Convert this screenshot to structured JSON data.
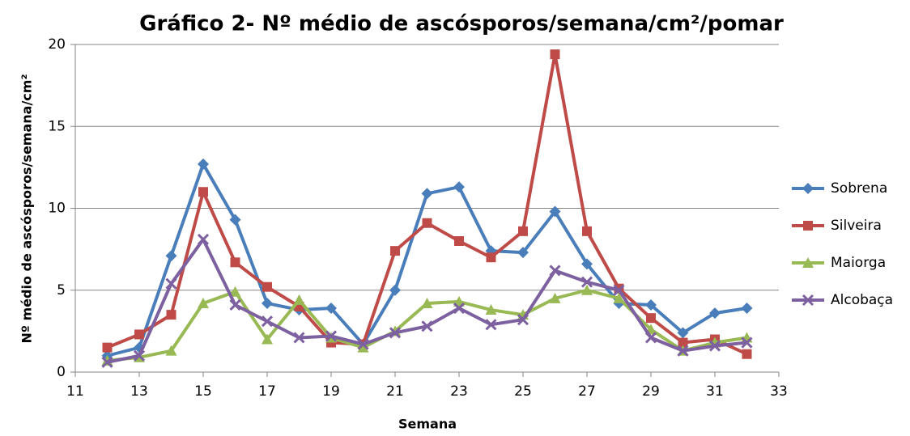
{
  "chart_data": {
    "type": "line",
    "title": "Gráfico 2- Nº médio de ascósporos/semana/cm²/pomar",
    "x_label": "Semana",
    "y_label": "Nº médio de ascósporos/semana/cm²",
    "x": [
      12,
      13,
      14,
      15,
      16,
      17,
      18,
      19,
      20,
      21,
      22,
      23,
      24,
      25,
      26,
      27,
      28,
      29,
      30,
      31,
      32
    ],
    "series": [
      {
        "name": "Sobrena",
        "color": "#4a7ebb",
        "marker": "diamond",
        "values": [
          1.0,
          1.5,
          7.1,
          12.7,
          9.3,
          4.2,
          3.8,
          3.9,
          1.7,
          5.0,
          10.9,
          11.3,
          7.4,
          7.3,
          9.8,
          6.6,
          4.2,
          4.1,
          2.4,
          3.6,
          3.9
        ]
      },
      {
        "name": "Silveira",
        "color": "#be4b48",
        "marker": "square",
        "values": [
          1.5,
          2.3,
          3.5,
          11.0,
          6.7,
          5.2,
          4.0,
          1.8,
          1.7,
          7.4,
          9.1,
          8.0,
          7.0,
          8.6,
          19.4,
          8.6,
          5.1,
          3.3,
          1.8,
          2.0,
          1.1
        ]
      },
      {
        "name": "Maiorga",
        "color": "#98b954",
        "marker": "triangle",
        "values": [
          0.7,
          0.9,
          1.3,
          4.2,
          4.9,
          2.0,
          4.4,
          2.1,
          1.5,
          2.5,
          4.2,
          4.3,
          3.8,
          3.5,
          4.5,
          5.0,
          4.5,
          2.6,
          1.3,
          1.8,
          2.1
        ]
      },
      {
        "name": "Alcobaça",
        "color": "#7d60a0",
        "marker": "x",
        "values": [
          0.6,
          1.0,
          5.4,
          8.1,
          4.1,
          3.1,
          2.1,
          2.2,
          1.7,
          2.4,
          2.8,
          3.9,
          2.9,
          3.2,
          6.2,
          5.5,
          5.0,
          2.1,
          1.3,
          1.6,
          1.8
        ]
      }
    ],
    "xlim": [
      11,
      33
    ],
    "xticks": [
      11,
      13,
      15,
      17,
      19,
      21,
      23,
      25,
      27,
      29,
      31,
      33
    ],
    "ylim": [
      0,
      20
    ],
    "yticks": [
      0,
      5,
      10,
      15,
      20
    ],
    "grid": true,
    "legend": "right"
  }
}
